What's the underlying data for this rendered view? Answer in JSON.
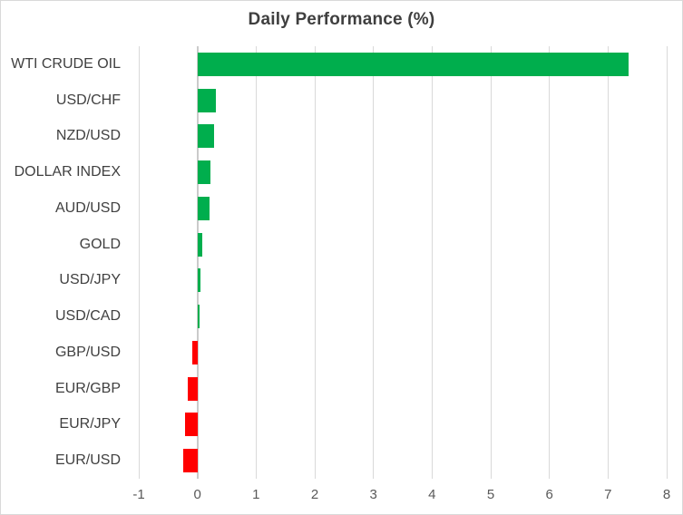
{
  "chart_data": {
    "type": "bar",
    "orientation": "horizontal",
    "title": "Daily Performance (%)",
    "categories": [
      "WTI CRUDE OIL",
      "USD/CHF",
      "NZD/USD",
      "DOLLAR INDEX",
      "AUD/USD",
      "GOLD",
      "USD/JPY",
      "USD/CAD",
      "GBP/USD",
      "EUR/GBP",
      "EUR/JPY",
      "EUR/USD"
    ],
    "values": [
      7.35,
      0.31,
      0.28,
      0.22,
      0.2,
      0.08,
      0.05,
      0.03,
      -0.08,
      -0.17,
      -0.21,
      -0.25
    ],
    "xlim": [
      -1,
      8
    ],
    "xticks": [
      -1,
      0,
      1,
      2,
      3,
      4,
      5,
      6,
      7,
      8
    ],
    "xtick_labels": [
      "-1",
      "0",
      "1",
      "2",
      "3",
      "4",
      "5",
      "6",
      "7",
      "8"
    ],
    "grid": true,
    "legend": false,
    "colors": {
      "positive": "#00AE4D",
      "negative": "#FF0000",
      "gridline": "#D9D9D9",
      "axis_line": "#CBCBCB",
      "title_text": "#3F3F3F",
      "category_text": "#404040",
      "tick_text": "#595959",
      "background": "#FFFFFF"
    }
  }
}
